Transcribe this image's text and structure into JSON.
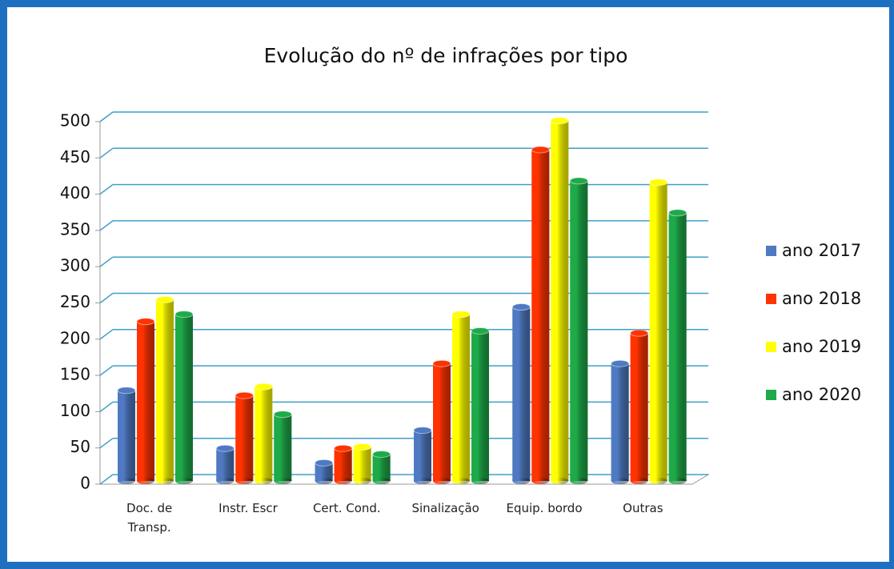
{
  "chart_data": {
    "type": "bar",
    "title": "Evolução do nº de infrações por tipo",
    "categories": [
      "Doc. de Transp.",
      "Instr. Escr",
      "Cert. Cond.",
      "Sinalização",
      "Equip. bordo",
      "Outras"
    ],
    "series": [
      {
        "name": "ano 2017",
        "color": "#4f7ac2",
        "values": [
          125,
          45,
          25,
          70,
          240,
          162
        ]
      },
      {
        "name": "ano 2018",
        "color": "#ff3300",
        "values": [
          220,
          118,
          45,
          162,
          457,
          204
        ]
      },
      {
        "name": "ano 2019",
        "color": "#ffff00",
        "values": [
          250,
          130,
          47,
          230,
          497,
          412
        ]
      },
      {
        "name": "ano 2020",
        "color": "#1faa4a",
        "values": [
          230,
          92,
          37,
          207,
          414,
          370
        ]
      }
    ],
    "ylim": [
      0,
      500
    ],
    "yticks": [
      0,
      50,
      100,
      150,
      200,
      250,
      300,
      350,
      400,
      450,
      500
    ],
    "grid": true,
    "legend": "right"
  }
}
